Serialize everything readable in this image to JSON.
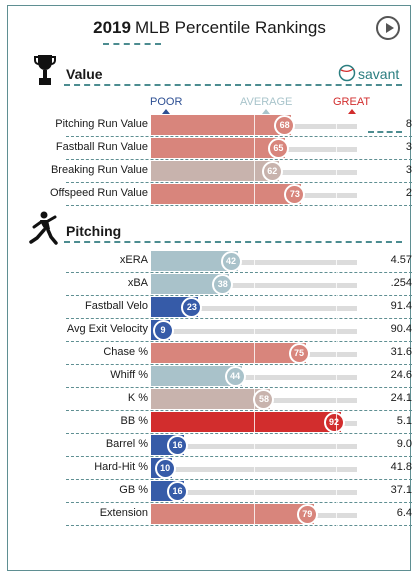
{
  "header": {
    "year": "2019",
    "title": "MLB Percentile Rankings"
  },
  "brand": {
    "name": "savant"
  },
  "scale_labels": {
    "poor": "POOR",
    "average": "AVERAGE",
    "great": "GREAT"
  },
  "colors": {
    "great": "#d22d2d",
    "above": "#d8857c",
    "neutral": "#c8b3ad",
    "below": "#a9c2ca",
    "poor": "#365ba8",
    "accent": "#4c8c90"
  },
  "chart_data": {
    "type": "bar",
    "orientation": "horizontal",
    "xlim": [
      0,
      100
    ],
    "sections": [
      {
        "title": "Value",
        "rows": [
          {
            "label": "Pitching Run Value",
            "percentile": 68,
            "stat": "8"
          },
          {
            "label": "Fastball Run Value",
            "percentile": 65,
            "stat": "3"
          },
          {
            "label": "Breaking Run Value",
            "percentile": 62,
            "stat": "3"
          },
          {
            "label": "Offspeed Run Value",
            "percentile": 73,
            "stat": "2"
          }
        ]
      },
      {
        "title": "Pitching",
        "rows": [
          {
            "label": "xERA",
            "percentile": 42,
            "stat": "4.57"
          },
          {
            "label": "xBA",
            "percentile": 38,
            "stat": ".254"
          },
          {
            "label": "Fastball Velo",
            "percentile": 23,
            "stat": "91.4"
          },
          {
            "label": "Avg Exit Velocity",
            "percentile": 9,
            "stat": "90.4"
          },
          {
            "label": "Chase %",
            "percentile": 75,
            "stat": "31.6"
          },
          {
            "label": "Whiff %",
            "percentile": 44,
            "stat": "24.6"
          },
          {
            "label": "K %",
            "percentile": 58,
            "stat": "24.1"
          },
          {
            "label": "BB %",
            "percentile": 92,
            "stat": "5.1"
          },
          {
            "label": "Barrel %",
            "percentile": 16,
            "stat": "9.0"
          },
          {
            "label": "Hard-Hit %",
            "percentile": 10,
            "stat": "41.8"
          },
          {
            "label": "GB %",
            "percentile": 16,
            "stat": "37.1"
          },
          {
            "label": "Extension",
            "percentile": 79,
            "stat": "6.4"
          }
        ]
      }
    ]
  }
}
